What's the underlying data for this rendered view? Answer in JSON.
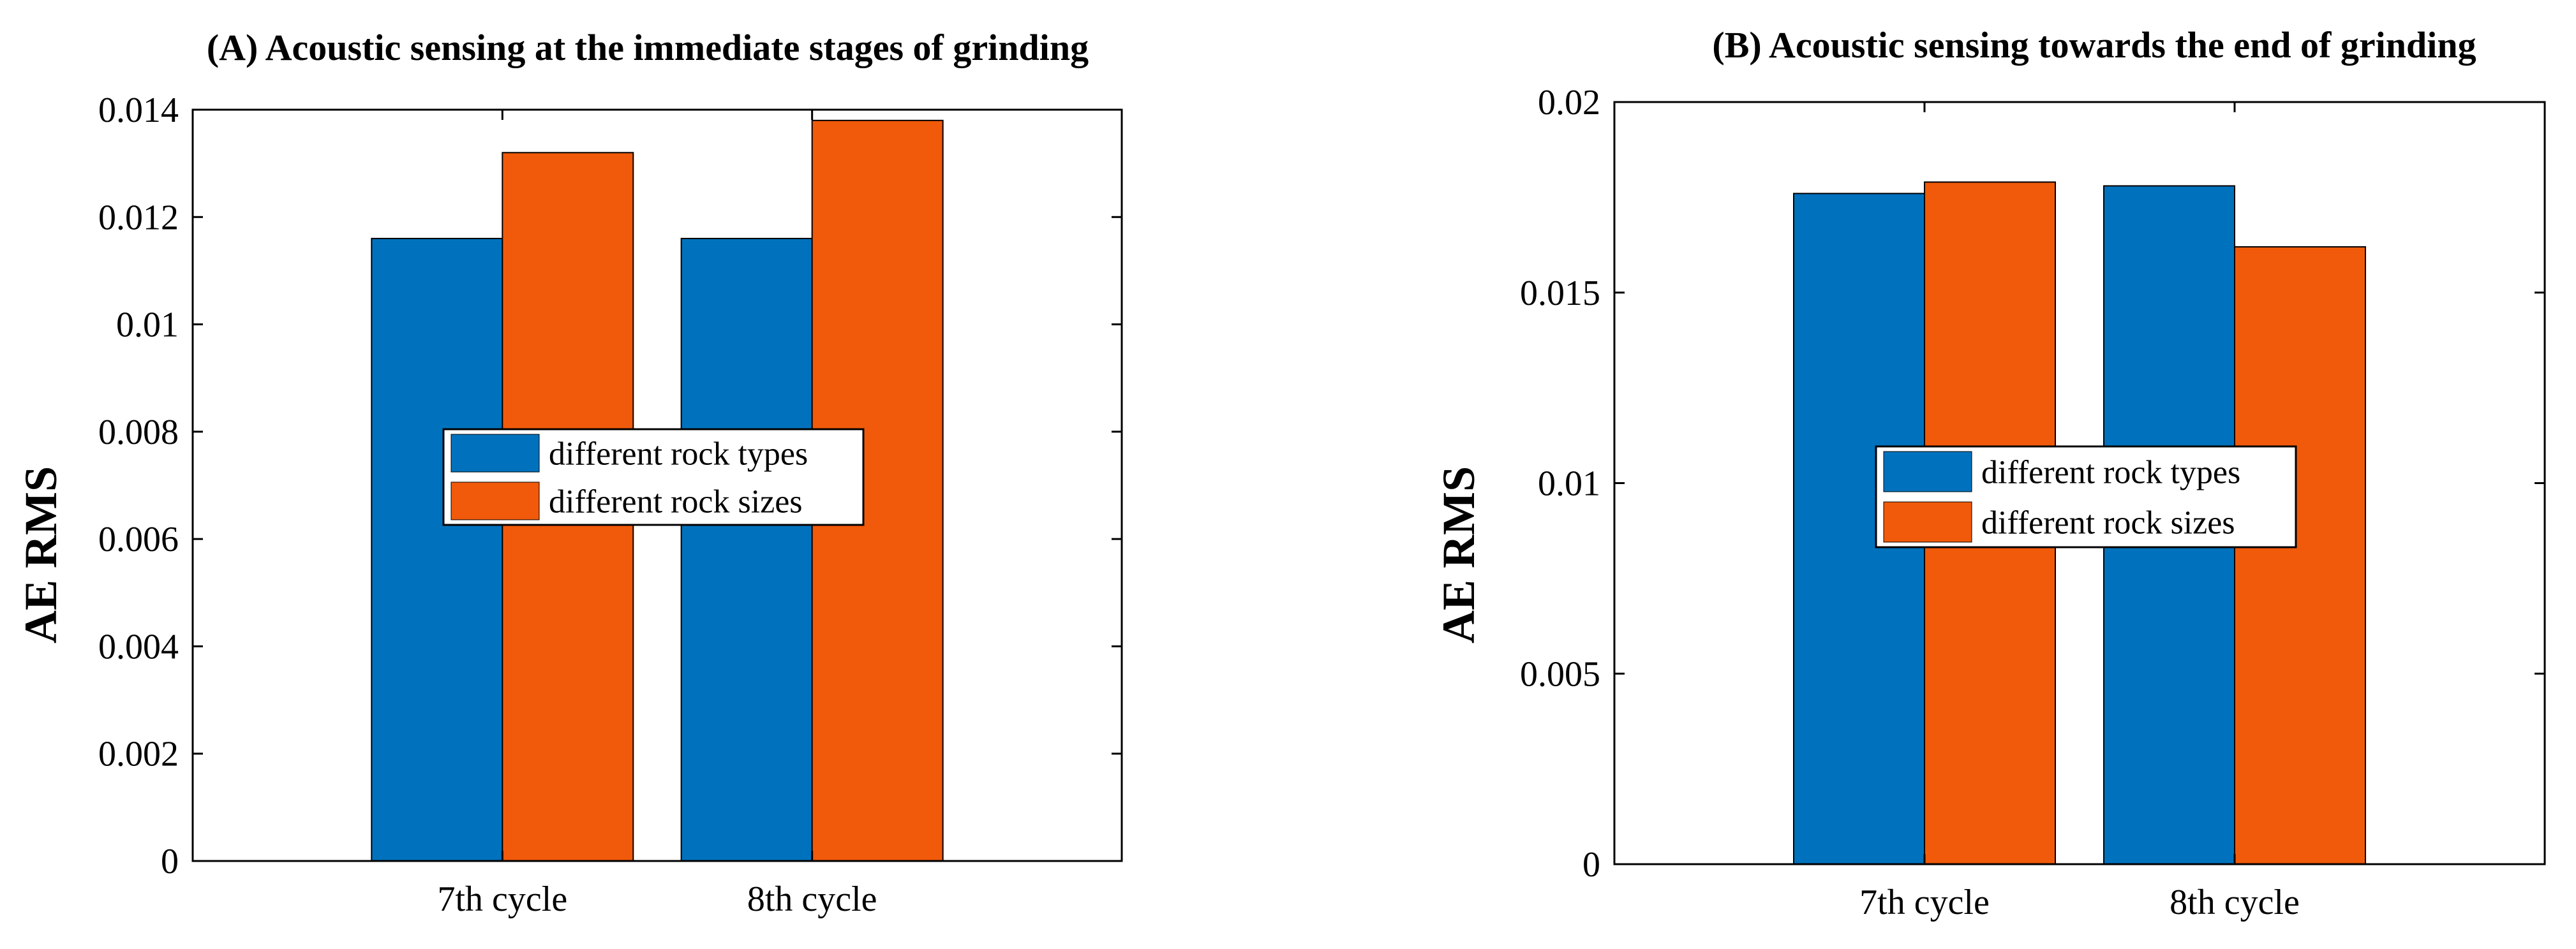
{
  "chart_data": [
    {
      "type": "bar",
      "title": "(A) Acoustic sensing at the immediate stages of grinding",
      "xlabel": "",
      "ylabel": "AE RMS",
      "categories": [
        "7th cycle",
        "8th cycle"
      ],
      "series": [
        {
          "name": "different rock types",
          "values": [
            0.0116,
            0.0116
          ],
          "color": "#0072BD"
        },
        {
          "name": "different rock sizes",
          "values": [
            0.0132,
            0.0138
          ],
          "color": "#F05A0A"
        }
      ],
      "ylim": [
        0,
        0.014
      ],
      "yticks": [
        0,
        0.002,
        0.004,
        0.006,
        0.008,
        0.01,
        0.012,
        0.014
      ],
      "ytick_labels": [
        "0",
        "0.002",
        "0.004",
        "0.006",
        "0.008",
        "0.01",
        "0.012",
        "0.014"
      ],
      "grid": false,
      "legend_position": "center"
    },
    {
      "type": "bar",
      "title": "(B) Acoustic sensing towards the end of grinding",
      "xlabel": "",
      "ylabel": "AE RMS",
      "categories": [
        "7th cycle",
        "8th cycle"
      ],
      "series": [
        {
          "name": "different rock types",
          "values": [
            0.0176,
            0.0178
          ],
          "color": "#0072BD"
        },
        {
          "name": "different rock sizes",
          "values": [
            0.0179,
            0.0162
          ],
          "color": "#F05A0A"
        }
      ],
      "ylim": [
        0,
        0.02
      ],
      "yticks": [
        0,
        0.005,
        0.01,
        0.015,
        0.02
      ],
      "ytick_labels": [
        "0",
        "0.005",
        "0.01",
        "0.015",
        "0.02"
      ],
      "grid": false,
      "legend_position": "center"
    }
  ]
}
